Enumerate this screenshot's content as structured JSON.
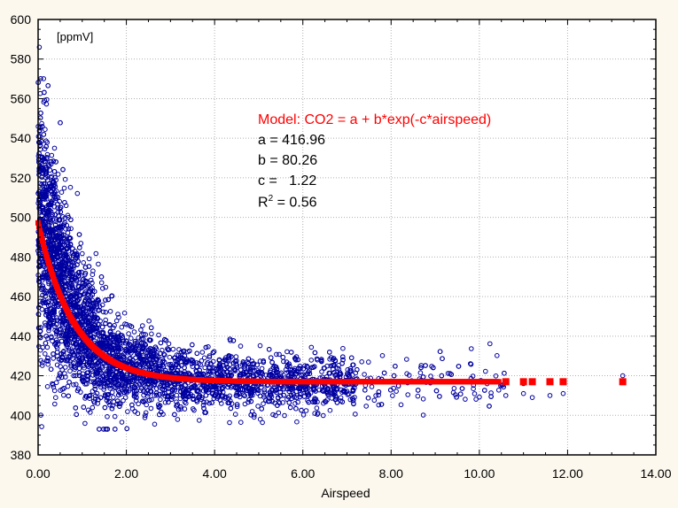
{
  "chart_data": {
    "type": "scatter",
    "title": "",
    "xlabel": "Airspeed",
    "ylabel": "[ppmV]",
    "xlim": [
      0,
      14
    ],
    "ylim": [
      380,
      600
    ],
    "xticks": [
      "0.00",
      "2.00",
      "4.00",
      "6.00",
      "8.00",
      "10.00",
      "12.00",
      "14.00"
    ],
    "yticks": [
      "380",
      "400",
      "420",
      "440",
      "460",
      "480",
      "500",
      "520",
      "540",
      "560",
      "580",
      "600"
    ],
    "grid": true,
    "colors": {
      "points": "#0000a0",
      "fit": "#ff0000",
      "model_text": "#ff0000"
    },
    "model": {
      "label": "Model: CO2 = a + b*exp(-c*airspeed)",
      "a": 416.96,
      "b": 80.26,
      "c": 1.22,
      "r2": 0.56
    },
    "annotation": {
      "model": "Model: CO2 = a + b*exp(-c*airspeed)",
      "a": "a = 416.96",
      "b": "b = 80.26",
      "c": "c =   1.22",
      "r_prefix": "R",
      "r_sup": "2",
      "r_suffix": " = 0.56"
    },
    "scatter": {
      "n_points": 4500,
      "x_range": [
        0,
        13.25
      ],
      "y_range": [
        393,
        586
      ]
    },
    "fit_isolated_x": [
      10.6,
      11.0,
      11.2,
      11.6,
      11.9,
      13.25
    ]
  }
}
